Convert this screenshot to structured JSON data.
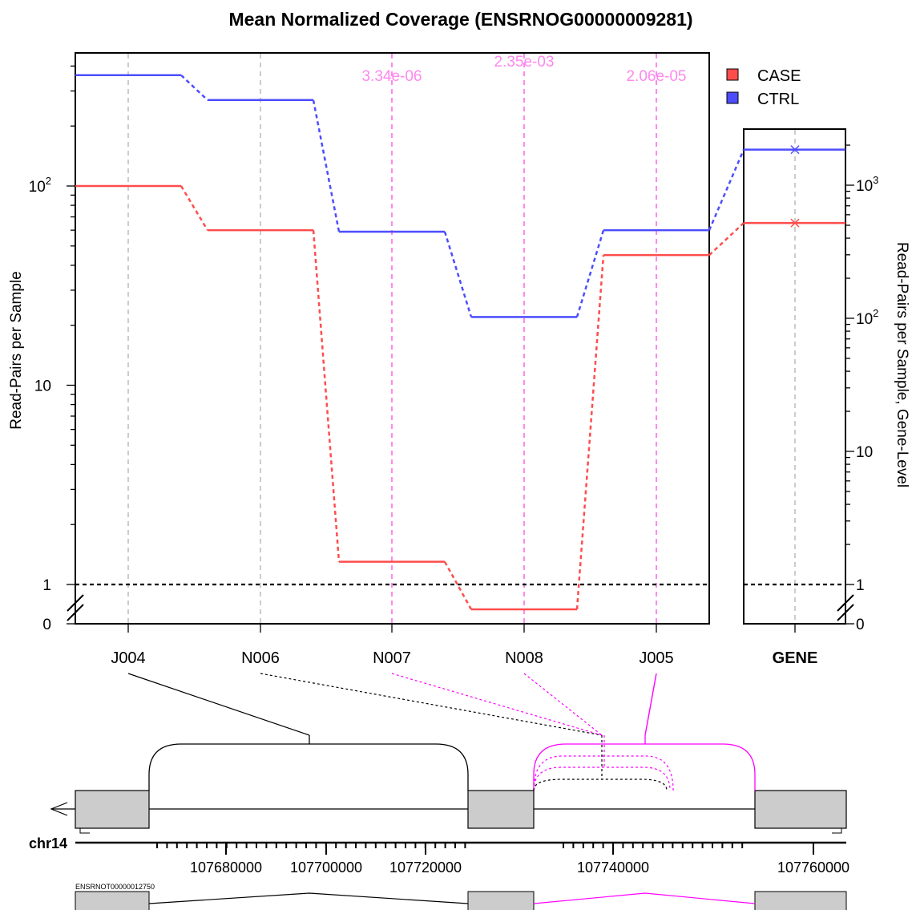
{
  "chart_data": {
    "type": "line",
    "title": "Mean Normalized Coverage (ENSRNOG00000009281)",
    "ylabel": "Read-Pairs per Sample",
    "ylabel_right": "Read-Pairs per Sample, Gene-Level",
    "yscale": "log",
    "categories": [
      "J004",
      "N006",
      "N007",
      "N008",
      "J005"
    ],
    "gene_label": "GENE",
    "y_ticks_left": [
      {
        "value": 0,
        "label": "0"
      },
      {
        "value": 1,
        "label": "1"
      },
      {
        "value": 10,
        "label": "10"
      },
      {
        "value": 100,
        "label": "10",
        "sup": "2"
      }
    ],
    "y_ticks_right": [
      {
        "value": 0,
        "label": "0"
      },
      {
        "value": 1,
        "label": "1"
      },
      {
        "value": 10,
        "label": "10"
      },
      {
        "value": 100,
        "label": "10",
        "sup": "2"
      },
      {
        "value": 1000,
        "label": "10",
        "sup": "3"
      }
    ],
    "series": [
      {
        "name": "CASE",
        "color": "#ff4d4d",
        "values": [
          100,
          60,
          1.3,
          0.75,
          45
        ],
        "gene_value": 520
      },
      {
        "name": "CTRL",
        "color": "#4d4dff",
        "values": [
          360,
          270,
          59,
          22,
          60
        ],
        "gene_value": 1850
      }
    ],
    "pvalues": [
      {
        "category": "N007",
        "label": "3.34e-06"
      },
      {
        "category": "N008",
        "label": "2.35e-03"
      },
      {
        "category": "J005",
        "label": "2.06e-05"
      }
    ],
    "highlight_color": "#ff88ee",
    "legend_position": "top-right",
    "reference_line": 1
  },
  "gene_track": {
    "chromosome": "chr14",
    "ticks": [
      "107680000",
      "107700000",
      "107720000",
      "107740000",
      "107760000"
    ],
    "transcript": "ENSRNOT00000012750",
    "arc_color_sig": "#ff00ff",
    "exon_color": "#cccccc"
  }
}
